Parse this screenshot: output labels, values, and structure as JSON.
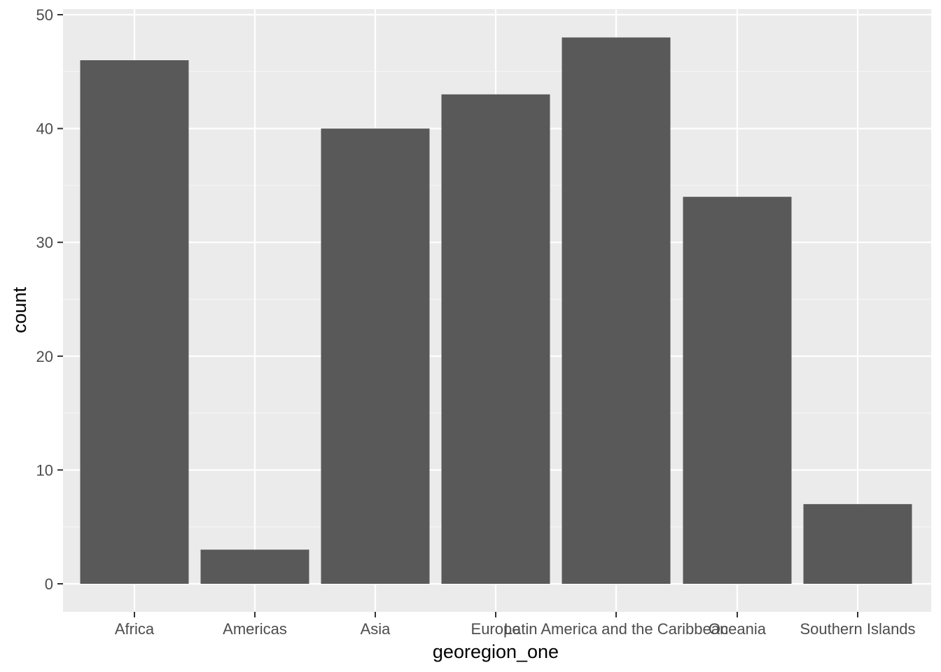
{
  "chart_data": {
    "type": "bar",
    "title": "",
    "xlabel": "georegion_one",
    "ylabel": "count",
    "categories": [
      "Africa",
      "Americas",
      "Asia",
      "Europe",
      "Latin America and the Caribbean",
      "Oceania",
      "Southern Islands"
    ],
    "values": [
      46,
      3,
      40,
      43,
      48,
      34,
      7
    ],
    "ylim": [
      0,
      50
    ],
    "yticks": [
      0,
      10,
      20,
      30,
      40,
      50
    ],
    "grid": true,
    "legend": "none",
    "colors": {
      "bar": "#595959",
      "panel": "#ebebeb",
      "grid_major": "#ffffff",
      "grid_minor": "#f5f5f5",
      "tick_text": "#4d4d4d",
      "axis_title": "#000000"
    }
  }
}
